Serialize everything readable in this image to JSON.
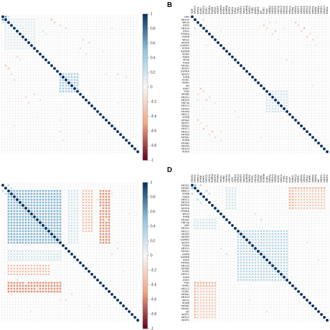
{
  "chart_data": [
    {
      "panel": "A",
      "type": "heatmap",
      "subtype": "correlation-circles",
      "letter_visible": false,
      "n": 48,
      "labels": [],
      "colorbar": {
        "visible": true,
        "ticks": [
          "1",
          "0.8",
          "0.6",
          "0.4",
          "0.2",
          "0",
          "-0.2",
          "-0.4",
          "-0.6",
          "-0.8",
          "-1"
        ],
        "range": [
          -1,
          1
        ]
      },
      "blocks": [
        {
          "rows": [
            1,
            11
          ],
          "cols": [
            1,
            11
          ],
          "value": 0.25
        },
        {
          "rows": [
            20,
            26
          ],
          "cols": [
            20,
            26
          ],
          "value": 0.45
        }
      ],
      "cells": [
        [
          0,
          1,
          0.65
        ],
        [
          0,
          2,
          0.3
        ],
        [
          1,
          2,
          0.3
        ],
        [
          1,
          17,
          -0.4
        ],
        [
          2,
          18,
          -0.35
        ],
        [
          3,
          20,
          -0.3
        ],
        [
          4,
          22,
          -0.3
        ],
        [
          9,
          30,
          -0.25
        ],
        [
          11,
          27,
          -0.3
        ],
        [
          14,
          5,
          0.3
        ],
        [
          15,
          6,
          0.25
        ],
        [
          20,
          40,
          0.3
        ],
        [
          21,
          43,
          0.25
        ],
        [
          28,
          8,
          -0.3
        ],
        [
          29,
          13,
          -0.25
        ],
        [
          30,
          9,
          -0.3
        ],
        [
          35,
          12,
          0.2
        ],
        [
          36,
          20,
          0.25
        ],
        [
          38,
          4,
          -0.25
        ],
        [
          40,
          30,
          -0.2
        ]
      ]
    },
    {
      "panel": "B",
      "type": "heatmap",
      "subtype": "correlation-circles",
      "letter_visible": true,
      "n": 48,
      "labels": [
        "VDR",
        "NR1H2",
        "NR1I3",
        "ESR2",
        "NR1H3",
        "ESR1",
        "PPARA",
        "RARB",
        "NR1I2",
        "NR2F6",
        "ESRRG",
        "RXRA",
        "ESRRB",
        "RXRG",
        "RARA",
        "NR4a",
        "THRA",
        "NR2E1",
        "NR2F1",
        "ESRRA",
        "NR2F2",
        "THRB",
        "RORC",
        "RARG",
        "AR",
        "ESR1",
        "PGR",
        "NR0B2",
        "NR1D1",
        "NR1D2",
        "HNF4A",
        "NR2C2",
        "NR4A1",
        "NR4A3",
        "NR2C1",
        "RXRB",
        "NR5A2",
        "NR2F1",
        "NR6A1",
        "NR3C1",
        "NR3C2",
        "NR4A2",
        "NR5A1",
        "RORB",
        "NR0B1",
        "NR2E3",
        "NR1H4",
        "RORA"
      ],
      "colorbar": {
        "visible": false
      },
      "blocks": [
        {
          "rows": [
            26,
            33
          ],
          "cols": [
            26,
            33
          ],
          "value": 0.3
        }
      ],
      "cells": [
        [
          1,
          4,
          0.3
        ],
        [
          3,
          5,
          0.25
        ],
        [
          5,
          10,
          0.2
        ],
        [
          2,
          36,
          -0.35
        ],
        [
          3,
          37,
          -0.3
        ],
        [
          4,
          39,
          -0.4
        ],
        [
          5,
          38,
          -0.3
        ],
        [
          6,
          41,
          -0.3
        ],
        [
          7,
          40,
          -0.35
        ],
        [
          8,
          42,
          -0.3
        ],
        [
          10,
          43,
          -0.25
        ],
        [
          2,
          29,
          0.25
        ],
        [
          4,
          32,
          0.2
        ],
        [
          25,
          3,
          -0.35
        ],
        [
          26,
          4,
          -0.3
        ],
        [
          27,
          2,
          -0.3
        ],
        [
          28,
          6,
          -0.3
        ],
        [
          29,
          5,
          -0.35
        ],
        [
          30,
          8,
          -0.25
        ],
        [
          33,
          15,
          0.25
        ],
        [
          35,
          16,
          0.2
        ],
        [
          40,
          10,
          -0.2
        ],
        [
          42,
          24,
          0.2
        ]
      ]
    },
    {
      "panel": "C",
      "type": "heatmap",
      "subtype": "correlation-circles",
      "letter_visible": false,
      "n": 48,
      "labels": [],
      "colorbar": {
        "visible": true,
        "ticks": [
          "1",
          "0.8",
          "0.6",
          "0.4",
          "0.2",
          "0",
          "-0.2",
          "-0.4",
          "-0.6",
          "-0.8",
          "-1"
        ],
        "range": [
          -1,
          1
        ]
      },
      "blocks": [
        {
          "rows": [
            2,
            20
          ],
          "cols": [
            2,
            20
          ],
          "value": 0.55
        },
        {
          "rows": [
            2,
            20
          ],
          "cols": [
            34,
            37
          ],
          "value": -0.55
        },
        {
          "rows": [
            2,
            20
          ],
          "cols": [
            23,
            26
          ],
          "value": 0.3
        },
        {
          "rows": [
            28,
            31
          ],
          "cols": [
            2,
            16
          ],
          "value": -0.4
        }
      ],
      "cells": [
        [
          0,
          2,
          0.4
        ],
        [
          1,
          3,
          0.35
        ],
        [
          22,
          40,
          0.3
        ],
        [
          24,
          38,
          -0.3
        ],
        [
          33,
          5,
          -0.3
        ],
        [
          34,
          8,
          -0.25
        ],
        [
          36,
          12,
          -0.3
        ],
        [
          38,
          3,
          -0.25
        ],
        [
          40,
          20,
          0.2
        ],
        [
          42,
          30,
          -0.2
        ],
        [
          44,
          10,
          -0.2
        ]
      ]
    },
    {
      "panel": "D",
      "type": "heatmap",
      "subtype": "correlation-circles",
      "letter_visible": true,
      "n": 48,
      "labels": [
        "NR2E1",
        "NR4A1",
        "NR6C1",
        "RXRB",
        "RARA",
        "NR3C1",
        "NR1H2",
        "ESRRA",
        "NR2F6",
        "PPARA",
        "NR1I3",
        "THRB",
        "NR4A2",
        "HNF4A",
        "VDR",
        "NR1D2",
        "NR3C2",
        "NR2E3",
        "NR4A3",
        "ESRRG",
        "NR2F2",
        "RXRA",
        "NR1D1",
        "NR4A1",
        "RARB",
        "ESRRB",
        "ESR2",
        "NR5A2",
        "NR1H3",
        "NR0B2",
        "RXRG",
        "NR2C1",
        "THRA",
        "ESR1",
        "PGR",
        "RARG",
        "NR2C2",
        "RORC",
        "NR5A1",
        "NR1H4",
        "NR1I2",
        "RORB",
        "NR0B1",
        "NR6A1",
        "AR",
        "NR2F1",
        "NR3C2",
        "NR2F2"
      ],
      "colorbar": {
        "visible": false
      },
      "blocks": [
        {
          "rows": [
            16,
            33
          ],
          "cols": [
            16,
            33
          ],
          "value": 0.4
        },
        {
          "rows": [
            1,
            8
          ],
          "cols": [
            34,
            46
          ],
          "value": -0.45
        },
        {
          "rows": [
            1,
            8
          ],
          "cols": [
            12,
            15
          ],
          "value": 0.3
        },
        {
          "rows": [
            36,
            46
          ],
          "cols": [
            2,
            8
          ],
          "value": -0.35
        }
      ],
      "cells": [
        [
          0,
          1,
          0.5
        ],
        [
          0,
          3,
          0.4
        ],
        [
          2,
          5,
          0.4
        ],
        [
          3,
          6,
          0.35
        ],
        [
          10,
          22,
          -0.3
        ],
        [
          12,
          24,
          0.3
        ],
        [
          20,
          40,
          -0.25
        ],
        [
          26,
          44,
          0.25
        ]
      ]
    }
  ]
}
